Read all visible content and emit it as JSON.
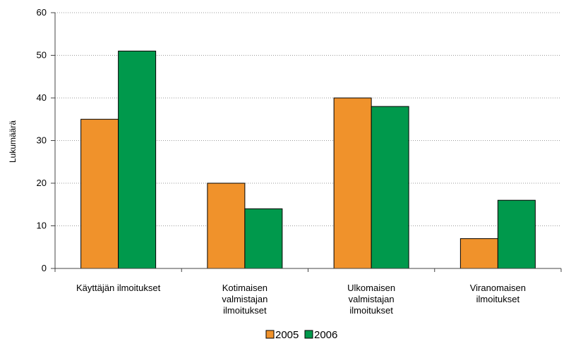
{
  "chart_data": {
    "type": "bar",
    "title": "",
    "xlabel": "",
    "ylabel": "Lukumäärä",
    "ylim": [
      0,
      60
    ],
    "yticks": [
      0,
      10,
      20,
      30,
      40,
      50,
      60
    ],
    "grid": "horizontal dotted",
    "legend": "bottom",
    "categories": [
      [
        "Käyttäjän ilmoitukset"
      ],
      [
        "Kotimaisen",
        "valmistajan",
        "ilmoitukset"
      ],
      [
        "Ulkomaisen",
        "valmistajan",
        "ilmoitukset"
      ],
      [
        "Viranomaisen",
        "ilmoitukset"
      ]
    ],
    "series": [
      {
        "name": "2005",
        "color": "#F0922B",
        "values": [
          35,
          20,
          40,
          7
        ]
      },
      {
        "name": "2006",
        "color": "#00994C",
        "values": [
          51,
          14,
          38,
          16
        ]
      }
    ]
  }
}
